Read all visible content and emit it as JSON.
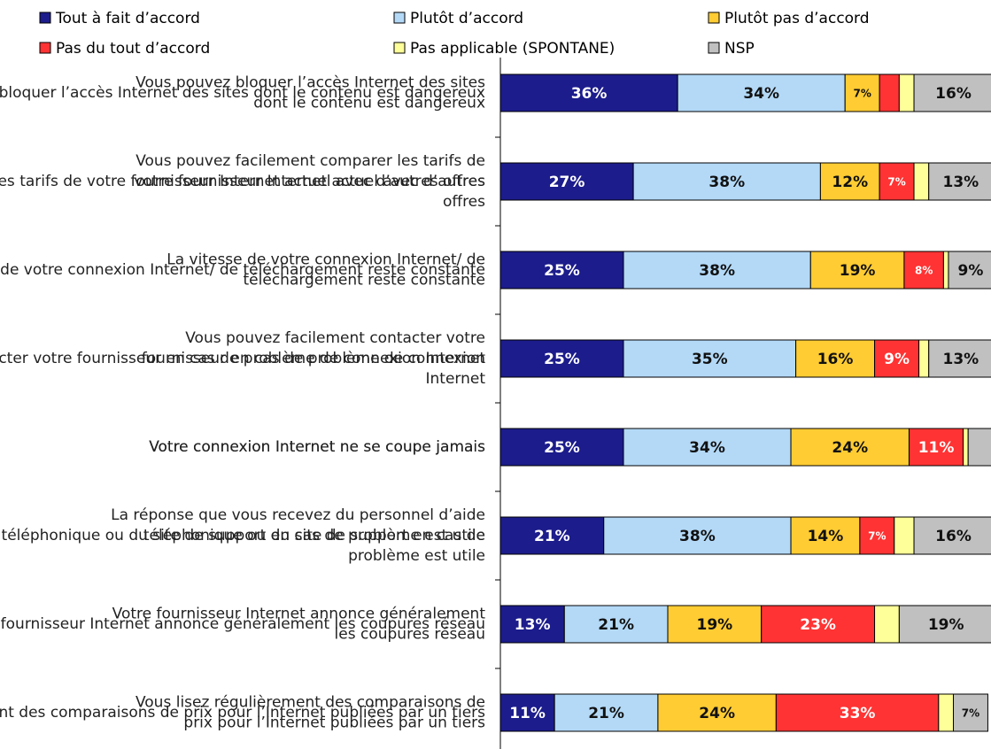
{
  "chart_data": {
    "type": "stacked-bar-horizontal",
    "categories": [
      "Vous pouvez bloquer l’accès Internet des sites\ndont le contenu est dangereux",
      "Vous pouvez facilement comparer les tarifs de\nvotre fournisseur Internet actuel avec d’autres\noffres",
      "La vitesse de votre connexion Internet/ de\ntéléchargement reste constante",
      "Vous pouvez facilement contacter votre\nfournisseur en cas de problème de connexion\nInternet",
      "Votre connexion Internet ne se coupe jamais",
      "La réponse que vous recevez du personnel d’aide\ntéléphonique ou du site de support en cas de\nproblème est utile",
      "Votre fournisseur Internet annonce généralement\nles coupures réseau",
      "Vous lisez régulièrement des comparaisons de\nprix pour l’Internet publiées par un tiers"
    ],
    "xlim": [
      0,
      100
    ],
    "legend": "top",
    "series": [
      {
        "name": "Tout à fait d’accord",
        "color": "#1c1c8c",
        "values": [
          36,
          27,
          25,
          25,
          25,
          21,
          13,
          11
        ],
        "value_labels": [
          "36%",
          "27%",
          "25%",
          "25%",
          "25%",
          "21%",
          "13%",
          "11%"
        ]
      },
      {
        "name": "Plutôt d’accord",
        "color": "#b3d9f7",
        "values": [
          34,
          38,
          38,
          35,
          34,
          38,
          21,
          21
        ],
        "value_labels": [
          "34%",
          "38%",
          "38%",
          "35%",
          "34%",
          "38%",
          "21%",
          "21%"
        ]
      },
      {
        "name": "Plutôt pas d’accord",
        "color": "#ffcc33",
        "values": [
          7,
          12,
          19,
          16,
          24,
          14,
          19,
          24
        ],
        "value_labels": [
          "7%",
          "12%",
          "19%",
          "16%",
          "24%",
          "14%",
          "19%",
          "24%"
        ]
      },
      {
        "name": "Pas du tout d’accord",
        "color": "#ff3333",
        "values": [
          4,
          7,
          8,
          9,
          11,
          7,
          23,
          33
        ],
        "value_labels": [
          null,
          "7%",
          "8%",
          "9%",
          "11%",
          "7%",
          "23%",
          "33%"
        ]
      },
      {
        "name": "Pas applicable (SPONTANE)",
        "color": "#ffff99",
        "values": [
          3,
          3,
          1,
          2,
          1,
          4,
          5,
          3
        ],
        "value_labels": [
          null,
          null,
          null,
          null,
          null,
          null,
          null,
          null
        ]
      },
      {
        "name": "NSP",
        "color": "#c0c0c0",
        "values": [
          16,
          13,
          9,
          13,
          5,
          16,
          19,
          7
        ],
        "value_labels": [
          "16%",
          "13%",
          "9%",
          "13%",
          null,
          "16%",
          "19%",
          "7%"
        ]
      }
    ]
  }
}
